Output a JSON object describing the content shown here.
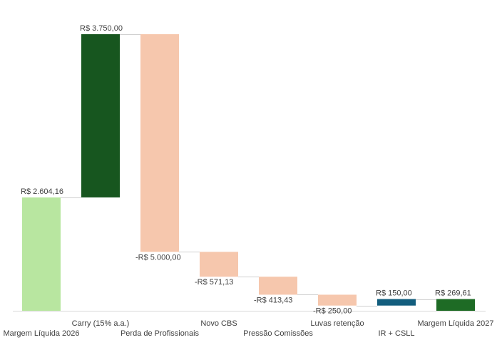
{
  "chart_data": {
    "type": "waterfall",
    "title": "",
    "xlabel": "",
    "ylabel": "",
    "ylim": [
      0,
      6354.16
    ],
    "grid": false,
    "legend": "none",
    "categories": [
      "Margem Líquida 2026",
      "Carry (15% a.a.)",
      "Perda de Profissionais",
      "Novo CBS",
      "Pressão Comissões",
      "Luvas retenção",
      "IR + CSLL",
      "Margem Líquida 2027"
    ],
    "values": [
      2604.16,
      3750.0,
      -5000.0,
      -571.13,
      -413.43,
      -250.0,
      150.0,
      269.61
    ],
    "kinds": [
      "total",
      "increase",
      "decrease",
      "decrease",
      "decrease",
      "decrease",
      "increase",
      "total"
    ],
    "data_labels": [
      "R$ 2.604,16",
      "R$ 3.750,00",
      "-R$ 5.000,00",
      "-R$ 571,13",
      "-R$ 413,43",
      "-R$ 250,00",
      "R$ 150,00",
      "R$ 269,61"
    ],
    "colors": [
      "#b8e6a0",
      "#17561f",
      "#f6c7ad",
      "#f6c7ad",
      "#f6c7ad",
      "#f6c7ad",
      "#135e7e",
      "#1e6b25"
    ]
  }
}
